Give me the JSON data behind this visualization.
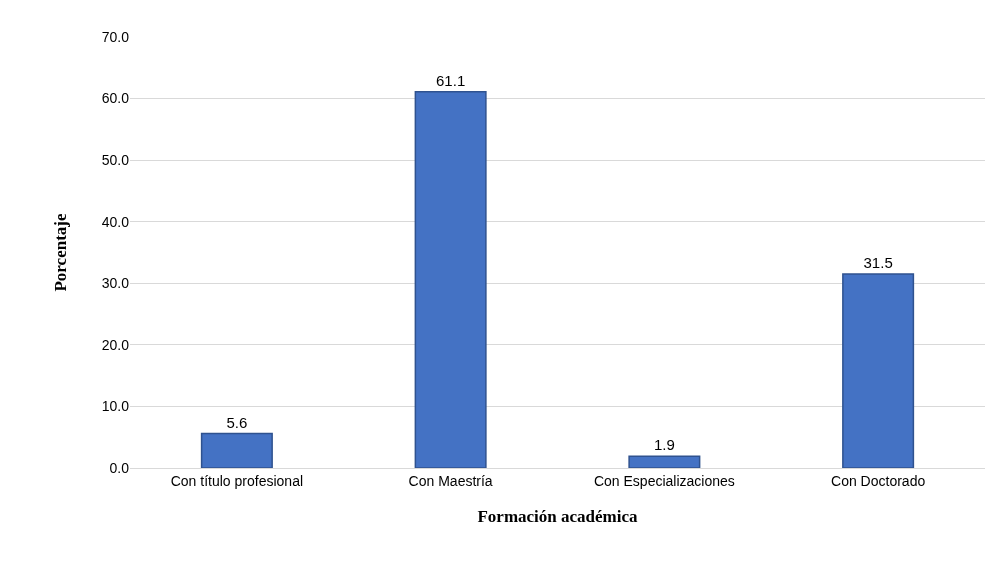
{
  "chart_data": {
    "type": "bar",
    "xlabel": "Formación académica",
    "ylabel": "Porcentaje",
    "categories": [
      "Con título profesional",
      "Con Maestría",
      "Con Especializaciones",
      "Con Doctorado"
    ],
    "values": [
      5.6,
      61.1,
      1.9,
      31.5
    ],
    "color": "#4472c4",
    "data_labels": true,
    "ylim": [
      0,
      70
    ],
    "yticks": [
      {
        "value": 0,
        "label": "0.0"
      },
      {
        "value": 10,
        "label": "10.0"
      },
      {
        "value": 20,
        "label": "20.0"
      },
      {
        "value": 30,
        "label": "30.0"
      },
      {
        "value": 40,
        "label": "40.0"
      },
      {
        "value": 50,
        "label": "50.0"
      },
      {
        "value": 60,
        "label": "60.0"
      },
      {
        "value": 70,
        "label": "70.0"
      }
    ],
    "grid": "y"
  }
}
